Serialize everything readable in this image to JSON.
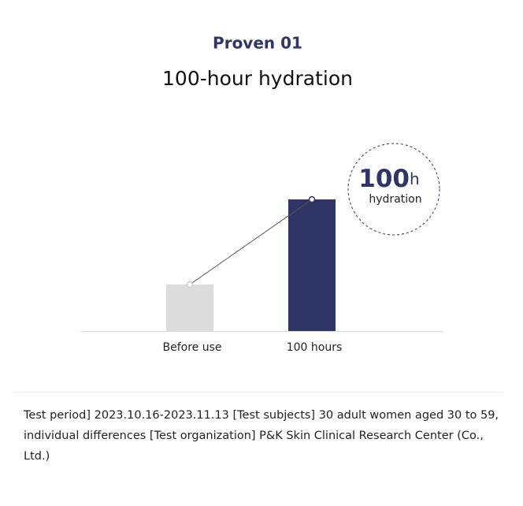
{
  "chart_data": {
    "type": "bar",
    "title": "Proven 01",
    "subtitle": "100-hour hydration",
    "categories": [
      "Before use",
      "100 hours"
    ],
    "values": [
      59,
      167
    ],
    "colors": [
      "#dcdcdc",
      "#2f3566"
    ],
    "connector": true,
    "annotation": {
      "number": "100",
      "unit": "h",
      "text": "hydration"
    },
    "footnote": "Test period] 2023.10.16-2023.11.13 [Test subjects] 30 adult women aged 30 to 59, individual differences [Test organization] P&K Skin Clinical Research Center (Co., Ltd.)"
  }
}
